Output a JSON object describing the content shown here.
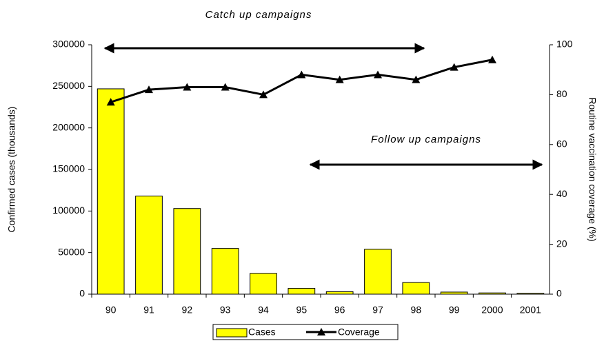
{
  "chart_data": {
    "type": "bar",
    "annotations": [
      "Catch up campaigns",
      "Follow up campaigns"
    ],
    "y_label": "Confirmed cases (thousands)",
    "y2_label": "Routine vaccination coverage (%)",
    "categories": [
      "90",
      "91",
      "92",
      "93",
      "94",
      "95",
      "96",
      "97",
      "98",
      "99",
      "2000",
      "2001"
    ],
    "series": [
      {
        "name": "Cases",
        "type": "bar",
        "color": "#ffff00",
        "values": [
          247000,
          118000,
          103000,
          55000,
          25000,
          7000,
          3000,
          54000,
          14000,
          2500,
          1500,
          1000
        ]
      },
      {
        "name": "Coverage",
        "type": "line",
        "axis": "y2",
        "color": "#000000",
        "values": [
          77,
          82,
          83,
          83,
          80,
          88,
          86,
          88,
          86,
          91,
          94,
          null
        ]
      }
    ],
    "ylim": [
      0,
      300000
    ],
    "yticks": [
      0,
      50000,
      100000,
      150000,
      200000,
      250000,
      300000
    ],
    "y2lim": [
      0,
      100
    ],
    "y2ticks": [
      0,
      20,
      40,
      60,
      80,
      100
    ],
    "y2_tick_color": "#ff0000",
    "axis_label_color": "#000080",
    "grid": false,
    "legend": "bottom"
  }
}
